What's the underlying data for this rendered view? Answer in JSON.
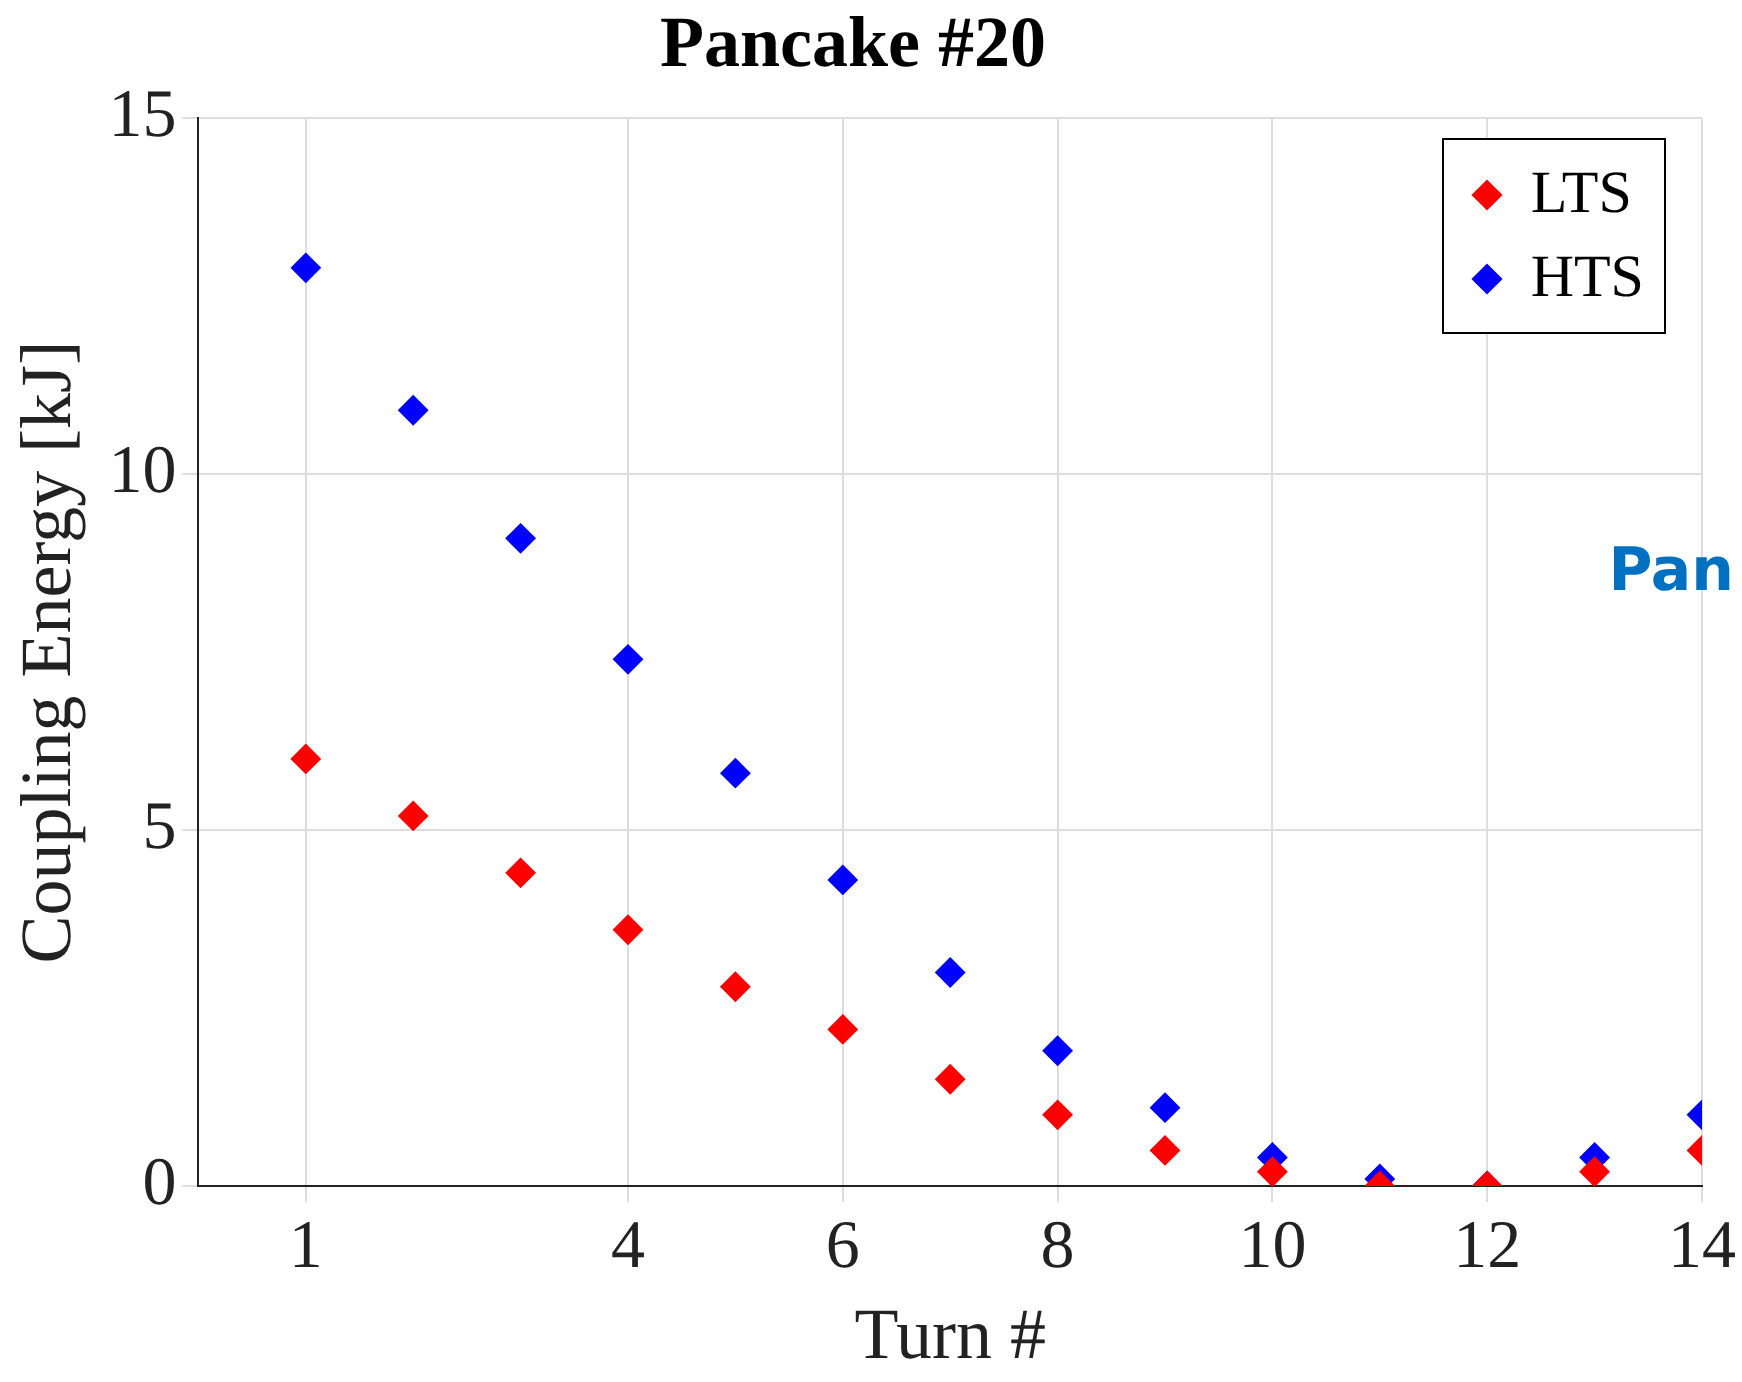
{
  "chart_data": {
    "type": "scatter",
    "title": "Pancake #20",
    "xlabel": "Turn #",
    "ylabel": "Coupling Energy [kJ]",
    "annotations": [
      "Pan"
    ],
    "x": [
      1,
      2,
      3,
      4,
      5,
      6,
      7,
      8,
      9,
      10,
      11,
      12,
      13,
      14
    ],
    "series": [
      {
        "name": "LTS",
        "color": "#ff0000",
        "values": [
          6.0,
          5.2,
          4.4,
          3.6,
          2.8,
          2.2,
          1.5,
          1.0,
          0.5,
          0.2,
          0.0,
          0.0,
          0.2,
          0.5
        ]
      },
      {
        "name": "HTS",
        "color": "#0000ff",
        "values": [
          12.9,
          10.9,
          9.1,
          7.4,
          5.8,
          4.3,
          3.0,
          1.9,
          1.1,
          0.4,
          0.1,
          0.0,
          0.4,
          1.0
        ]
      }
    ],
    "xlim": [
      0,
      14
    ],
    "xticks": [
      1,
      4,
      6,
      8,
      10,
      12,
      14
    ],
    "ylim": [
      0,
      15
    ],
    "yticks": [
      0,
      5,
      10,
      15
    ],
    "grid": true,
    "legend": "top right",
    "marker": "diamond"
  }
}
